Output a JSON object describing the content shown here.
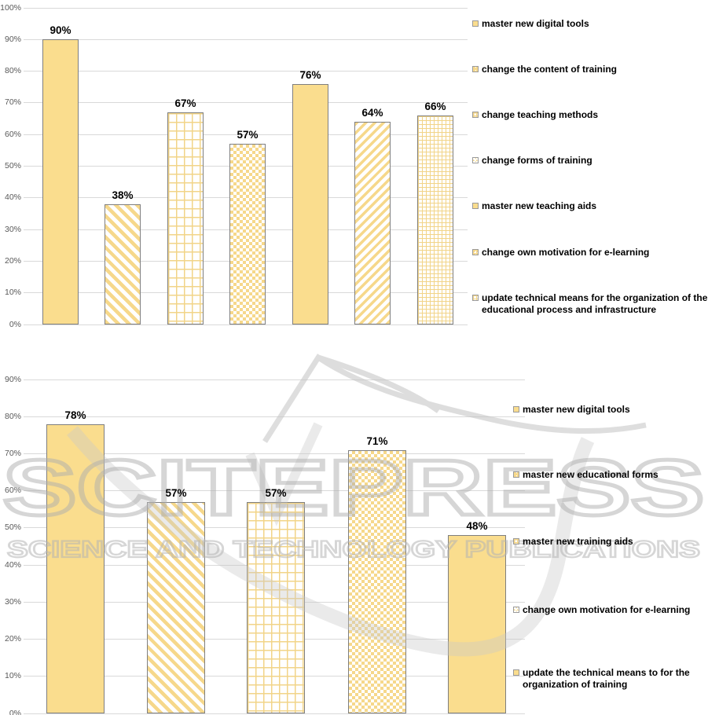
{
  "watermark": {
    "line1": "SCITEPRESS",
    "line2": "SCIENCE AND TECHNOLOGY PUBLICATIONS"
  },
  "colors": {
    "bar_fill": "#FADD8E",
    "bar_border": "#7F7F7F",
    "gridline": "#D9D9D9",
    "axis_text": "#595959",
    "data_label_text": "#000000",
    "watermark_gray": "#B5B5B5"
  },
  "chart_data": [
    {
      "type": "bar",
      "title": "",
      "xlabel": "",
      "ylabel": "",
      "ylim": [
        0,
        100
      ],
      "ytick_step": 10,
      "ytick_labels": [
        "0%",
        "10%",
        "20%",
        "30%",
        "40%",
        "50%",
        "60%",
        "70%",
        "80%",
        "90%",
        "100%"
      ],
      "grid": true,
      "legend_position": "right",
      "series": [
        {
          "name": "master new digital tools",
          "value": 90,
          "label": "90%",
          "pattern": "solid"
        },
        {
          "name": "change the content of training",
          "value": 38,
          "label": "38%",
          "pattern": "diagonal-down"
        },
        {
          "name": "change teaching methods",
          "value": 67,
          "label": "67%",
          "pattern": "grid-large"
        },
        {
          "name": "change forms of training",
          "value": 57,
          "label": "57%",
          "pattern": "diamond"
        },
        {
          "name": "master new teaching aids",
          "value": 76,
          "label": "76%",
          "pattern": "solid"
        },
        {
          "name": "change own motivation for e-learning",
          "value": 64,
          "label": "64%",
          "pattern": "diagonal-up"
        },
        {
          "name": "update technical means for the organization of the educational process and infrastructure",
          "value": 66,
          "label": "66%",
          "pattern": "grid-fine"
        }
      ]
    },
    {
      "type": "bar",
      "title": "",
      "xlabel": "",
      "ylabel": "",
      "ylim": [
        0,
        90
      ],
      "ytick_step": 10,
      "ytick_labels": [
        "0%",
        "10%",
        "20%",
        "30%",
        "40%",
        "50%",
        "60%",
        "70%",
        "80%",
        "90%"
      ],
      "grid": true,
      "legend_position": "right",
      "series": [
        {
          "name": "master new digital tools",
          "value": 78,
          "label": "78%",
          "pattern": "solid"
        },
        {
          "name": "master new educational forms",
          "value": 57,
          "label": "57%",
          "pattern": "diagonal-down"
        },
        {
          "name": "master new training aids",
          "value": 57,
          "label": "57%",
          "pattern": "grid-large"
        },
        {
          "name": "change own motivation for e-learning",
          "value": 71,
          "label": "71%",
          "pattern": "diamond"
        },
        {
          "name": "update the technical means to for the organization of training",
          "value": 48,
          "label": "48%",
          "pattern": "solid"
        }
      ]
    }
  ]
}
